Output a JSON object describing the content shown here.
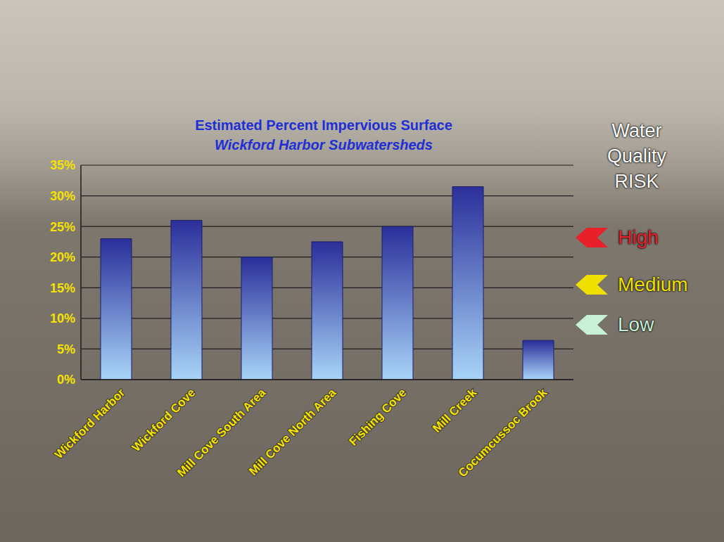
{
  "chart_data": {
    "type": "bar",
    "title": "Estimated Percent Impervious Surface",
    "subtitle": "Wickford Harbor Subwatersheds",
    "categories": [
      "Wickford Harbor",
      "Wickford Cove",
      "Mill Cove South Area",
      "Mill Cove North Area",
      "Fishing Cove",
      "Mill Creek",
      "Cocumcussoc Brook"
    ],
    "values": [
      23,
      26,
      20,
      22.5,
      25,
      31.5,
      6.4
    ],
    "color": "#2b2f9a",
    "ylim": [
      0,
      35
    ],
    "yticks": [
      {
        "value": 0,
        "label": "0%"
      },
      {
        "value": 5,
        "label": "5%"
      },
      {
        "value": 10,
        "label": "10%"
      },
      {
        "value": 15,
        "label": "15%"
      },
      {
        "value": 20,
        "label": "20%"
      },
      {
        "value": 25,
        "label": "25%"
      },
      {
        "value": 30,
        "label": "30%"
      },
      {
        "value": 35,
        "label": "35%"
      }
    ],
    "grid": true,
    "annotations": {
      "heading": "Water Quality RISK",
      "levels": [
        {
          "text": "High",
          "color": "#e8202a"
        },
        {
          "text": "Medium",
          "color": "#f0e000"
        },
        {
          "text": "Low",
          "color": "#c8f0d8"
        }
      ]
    }
  }
}
